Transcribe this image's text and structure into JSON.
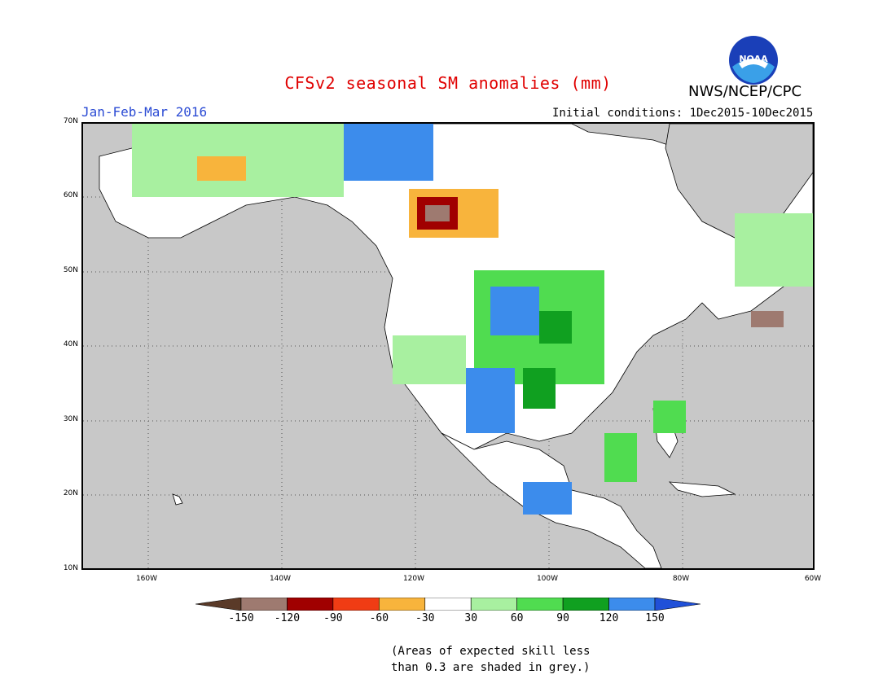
{
  "title": "CFSv2 seasonal SM anomalies (mm)",
  "agency": "NWS/NCEP/CPC",
  "logo_text": "NOAA",
  "season": "Jan-Feb-Mar 2016",
  "initial_conditions": "Initial conditions: 1Dec2015-10Dec2015",
  "lat_labels": [
    "70N",
    "60N",
    "50N",
    "40N",
    "30N",
    "20N",
    "10N"
  ],
  "lon_labels": [
    "160W",
    "140W",
    "120W",
    "100W",
    "80W",
    "60W"
  ],
  "colorbar": {
    "labels": [
      "-150",
      "-120",
      "-90",
      "-60",
      "-30",
      "30",
      "60",
      "90",
      "120",
      "150"
    ],
    "colors": [
      "#5a3a28",
      "#9e7a70",
      "#a00000",
      "#f03c14",
      "#f8b43c",
      "#ffffff",
      "#a8f0a0",
      "#50dc50",
      "#10a020",
      "#3c8cec",
      "#2050d8"
    ]
  },
  "note_line1": "(Areas of expected skill less",
  "note_line2": "than 0.3 are shaded in grey.)",
  "colors": {
    "land_grey": "#c8c8c8",
    "title_red": "#e00000",
    "season_blue": "#2b4bd4"
  }
}
